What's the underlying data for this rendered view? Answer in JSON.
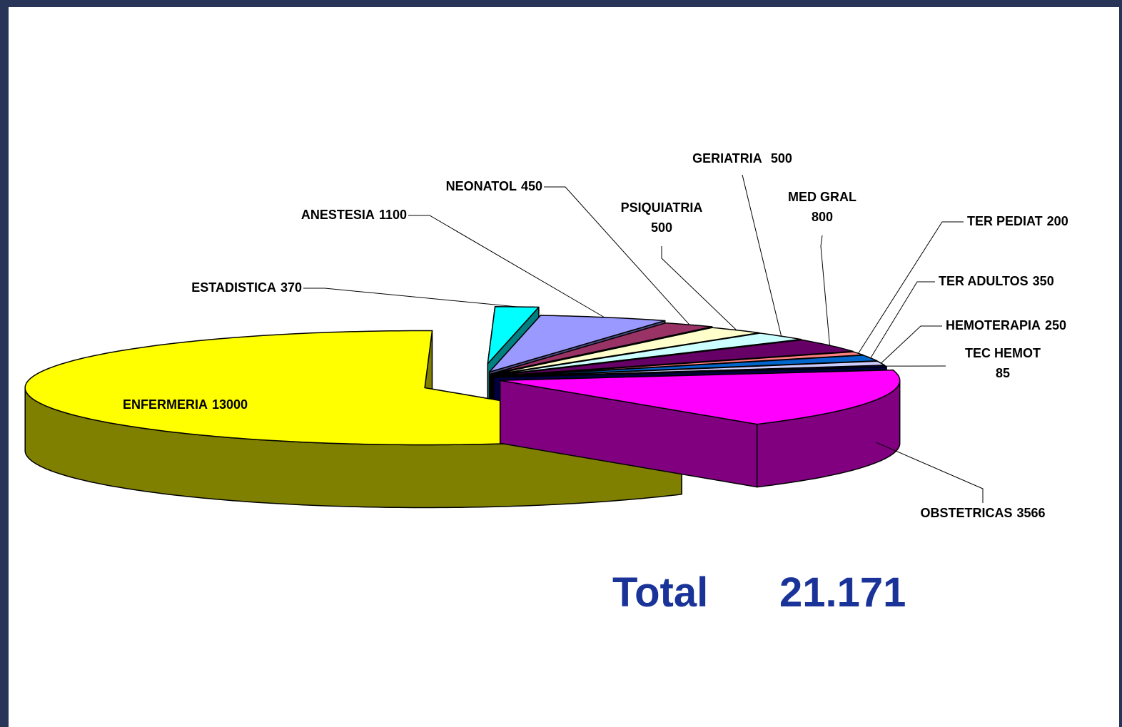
{
  "chart_data": {
    "type": "pie",
    "categories": [
      "ENFERMERIA",
      "ESTADISTICA",
      "ANESTESIA",
      "NEONATOL",
      "PSIQUIATRIA",
      "GERIATRIA",
      "MED GRAL",
      "TER PEDIAT",
      "TER ADULTOS",
      "HEMOTERAPIA",
      "TEC HEMOT",
      "OBSTETRICAS"
    ],
    "values": [
      13000,
      370,
      1100,
      450,
      500,
      500,
      800,
      200,
      350,
      250,
      85,
      3566
    ],
    "colors": [
      "#ffff00",
      "#00ffff",
      "#9999ff",
      "#993366",
      "#ffffcc",
      "#ccffff",
      "#660066",
      "#ff8080",
      "#0066cc",
      "#ccccff",
      "#000080",
      "#ff00ff"
    ],
    "total_label": "Total",
    "total_value": "21.171"
  }
}
